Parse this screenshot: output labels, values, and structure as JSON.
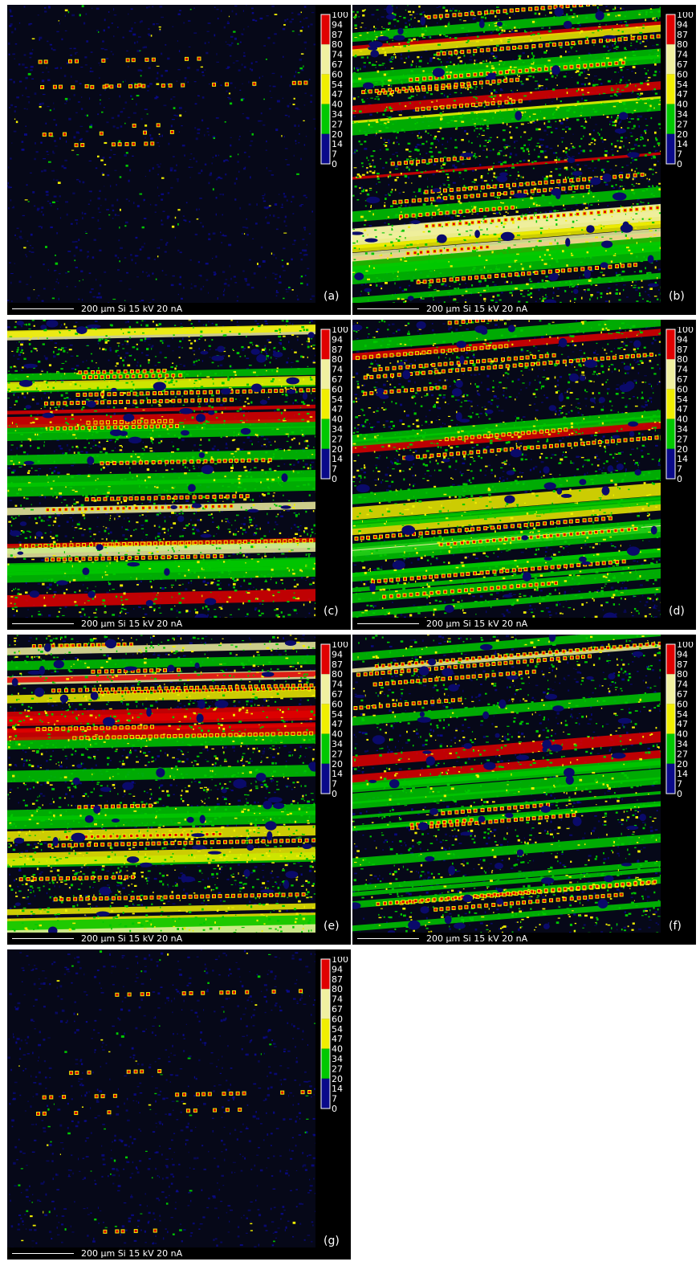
{
  "colorbar": {
    "ticks": [
      "100",
      "94",
      "87",
      "80",
      "74",
      "67",
      "60",
      "54",
      "47",
      "40",
      "34",
      "27",
      "20",
      "14",
      "7",
      "0"
    ],
    "colors": [
      "#e00000",
      "#f0f0a0",
      "#f0ee00",
      "#00c800",
      "#0a0a8a"
    ]
  },
  "panels": [
    {
      "label": "(a)",
      "scalebar": "200 µm  Si  15 kV 20 nA",
      "coverage": 0.05
    },
    {
      "label": "(b)",
      "scalebar": "200 µm  Si  15 kV 20 nA",
      "coverage": 0.8
    },
    {
      "label": "(c)",
      "scalebar": "200 µm  Si  15 kV 20 nA",
      "coverage": 0.65
    },
    {
      "label": "(d)",
      "scalebar": "200 µm  Si  15 kV 20 nA",
      "coverage": 0.6
    },
    {
      "label": "(e)",
      "scalebar": "200 µm  Si  15 kV 20 nA",
      "coverage": 0.7
    },
    {
      "label": "(f)",
      "scalebar": "200 µm  Si  15 kV 20 nA",
      "coverage": 0.5
    },
    {
      "label": "(g)",
      "scalebar": "200 µm  Si  15 kV 20 nA",
      "coverage": 0.03
    }
  ]
}
